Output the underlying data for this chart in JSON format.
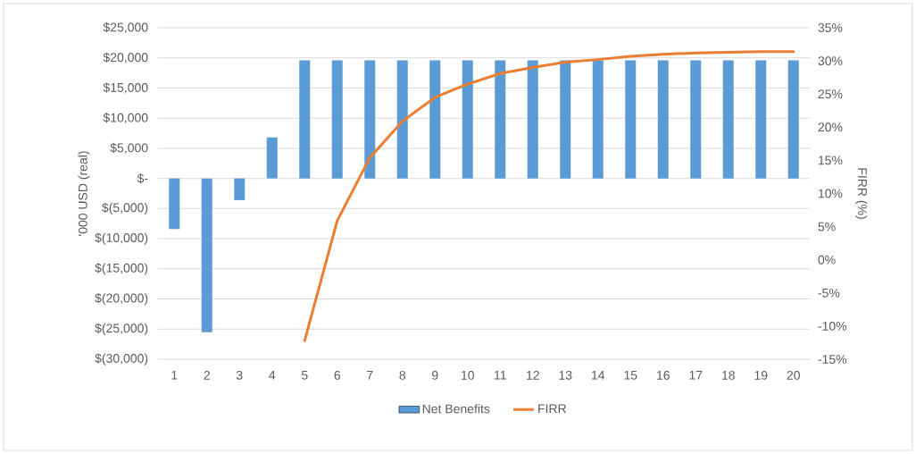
{
  "chart_data": {
    "type": "bar",
    "categories": [
      "1",
      "2",
      "3",
      "4",
      "5",
      "6",
      "7",
      "8",
      "9",
      "10",
      "11",
      "12",
      "13",
      "14",
      "15",
      "16",
      "17",
      "18",
      "19",
      "20"
    ],
    "series": [
      {
        "name": "Net Benefits",
        "color": "#5b9bd5",
        "values": [
          -8400,
          -25500,
          -3600,
          6800,
          19600,
          19600,
          19600,
          19600,
          19600,
          19600,
          19600,
          19600,
          19600,
          19600,
          19600,
          19600,
          19600,
          19600,
          19600,
          19600
        ]
      },
      {
        "name": "FIRR",
        "type": "line",
        "axis": "y2",
        "color": "#ed7d31",
        "values": [
          null,
          null,
          null,
          null,
          -12.2,
          5.9,
          15.4,
          20.9,
          24.5,
          26.5,
          28.1,
          29.0,
          29.8,
          30.2,
          30.7,
          31.0,
          31.2,
          31.3,
          31.4,
          31.4
        ]
      }
    ],
    "ylabel": "'000 USD (real)",
    "y2label": "FIRR (%)",
    "ylim": [
      -30000,
      25000
    ],
    "yticks": [
      {
        "value": 25000,
        "label": "$25,000"
      },
      {
        "value": 20000,
        "label": "$20,000"
      },
      {
        "value": 15000,
        "label": "$15,000"
      },
      {
        "value": 10000,
        "label": "$10,000"
      },
      {
        "value": 5000,
        "label": "$5,000"
      },
      {
        "value": 0,
        "label": "$-"
      },
      {
        "value": -5000,
        "label": "$(5,000)"
      },
      {
        "value": -10000,
        "label": "$(10,000)"
      },
      {
        "value": -15000,
        "label": "$(15,000)"
      },
      {
        "value": -20000,
        "label": "$(20,000)"
      },
      {
        "value": -25000,
        "label": "$(25,000)"
      },
      {
        "value": -30000,
        "label": "$(30,000)"
      }
    ],
    "y2lim": [
      -15,
      35
    ],
    "y2ticks": [
      {
        "value": 35,
        "label": "35%"
      },
      {
        "value": 30,
        "label": "30%"
      },
      {
        "value": 25,
        "label": "25%"
      },
      {
        "value": 20,
        "label": "20%"
      },
      {
        "value": 15,
        "label": "15%"
      },
      {
        "value": 10,
        "label": "10%"
      },
      {
        "value": 5,
        "label": "5%"
      },
      {
        "value": 0,
        "label": "0%"
      },
      {
        "value": -5,
        "label": "-5%"
      },
      {
        "value": -10,
        "label": "-10%"
      },
      {
        "value": -15,
        "label": "-15%"
      }
    ],
    "grid": "y",
    "legend": "bottom"
  }
}
